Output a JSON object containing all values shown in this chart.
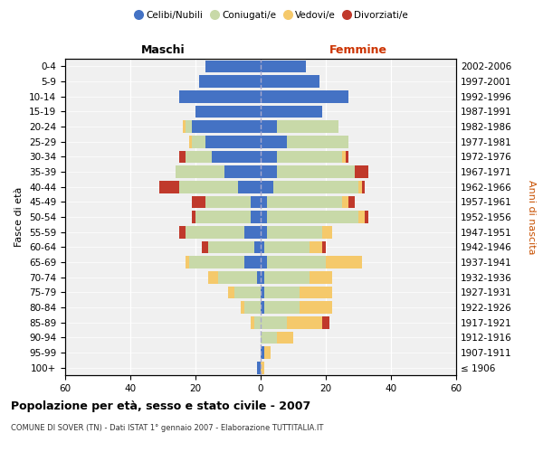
{
  "age_groups": [
    "100+",
    "95-99",
    "90-94",
    "85-89",
    "80-84",
    "75-79",
    "70-74",
    "65-69",
    "60-64",
    "55-59",
    "50-54",
    "45-49",
    "40-44",
    "35-39",
    "30-34",
    "25-29",
    "20-24",
    "15-19",
    "10-14",
    "5-9",
    "0-4"
  ],
  "birth_years": [
    "≤ 1906",
    "1907-1911",
    "1912-1916",
    "1917-1921",
    "1922-1926",
    "1927-1931",
    "1932-1936",
    "1937-1941",
    "1942-1946",
    "1947-1951",
    "1952-1956",
    "1957-1961",
    "1962-1966",
    "1967-1971",
    "1972-1976",
    "1977-1981",
    "1982-1986",
    "1987-1991",
    "1992-1996",
    "1997-2001",
    "2002-2006"
  ],
  "male_celibi": [
    1,
    0,
    0,
    0,
    0,
    0,
    1,
    5,
    2,
    5,
    3,
    3,
    7,
    11,
    15,
    17,
    21,
    20,
    25,
    19,
    17
  ],
  "male_coniugati": [
    0,
    0,
    0,
    2,
    5,
    8,
    12,
    17,
    14,
    18,
    17,
    14,
    18,
    15,
    8,
    4,
    2,
    0,
    0,
    0,
    0
  ],
  "male_vedovi": [
    0,
    0,
    0,
    1,
    1,
    2,
    3,
    1,
    0,
    0,
    0,
    0,
    0,
    0,
    0,
    1,
    1,
    0,
    0,
    0,
    0
  ],
  "male_divorziati": [
    0,
    0,
    0,
    0,
    0,
    0,
    0,
    0,
    2,
    2,
    1,
    4,
    6,
    0,
    2,
    0,
    0,
    0,
    0,
    0,
    0
  ],
  "female_nubili": [
    0,
    1,
    0,
    0,
    1,
    1,
    1,
    2,
    1,
    2,
    2,
    2,
    4,
    5,
    5,
    8,
    5,
    19,
    27,
    18,
    14
  ],
  "female_coniugate": [
    0,
    0,
    5,
    8,
    11,
    11,
    14,
    18,
    14,
    17,
    28,
    23,
    26,
    24,
    20,
    19,
    19,
    0,
    0,
    0,
    0
  ],
  "female_vedove": [
    1,
    2,
    5,
    11,
    10,
    10,
    7,
    11,
    4,
    3,
    2,
    2,
    1,
    0,
    1,
    0,
    0,
    0,
    0,
    0,
    0
  ],
  "female_divorziate": [
    0,
    0,
    0,
    2,
    0,
    0,
    0,
    0,
    1,
    0,
    1,
    2,
    1,
    4,
    1,
    0,
    0,
    0,
    0,
    0,
    0
  ],
  "colors": {
    "celibi": "#4472C4",
    "coniugati": "#C8D9A8",
    "vedovi": "#F5C96B",
    "divorziati": "#C0392B"
  },
  "xlim": 60,
  "title": "Popolazione per età, sesso e stato civile - 2007",
  "subtitle": "COMUNE DI SOVER (TN) - Dati ISTAT 1° gennaio 2007 - Elaborazione TUTTITALIA.IT",
  "header_left": "Maschi",
  "header_right": "Femmine",
  "ylabel_left": "Fasce di età",
  "ylabel_right": "Anni di nascita",
  "legend_labels": [
    "Celibi/Nubili",
    "Coniugati/e",
    "Vedovi/e",
    "Divorziati/e"
  ],
  "bg_color": "#f0f0f0"
}
